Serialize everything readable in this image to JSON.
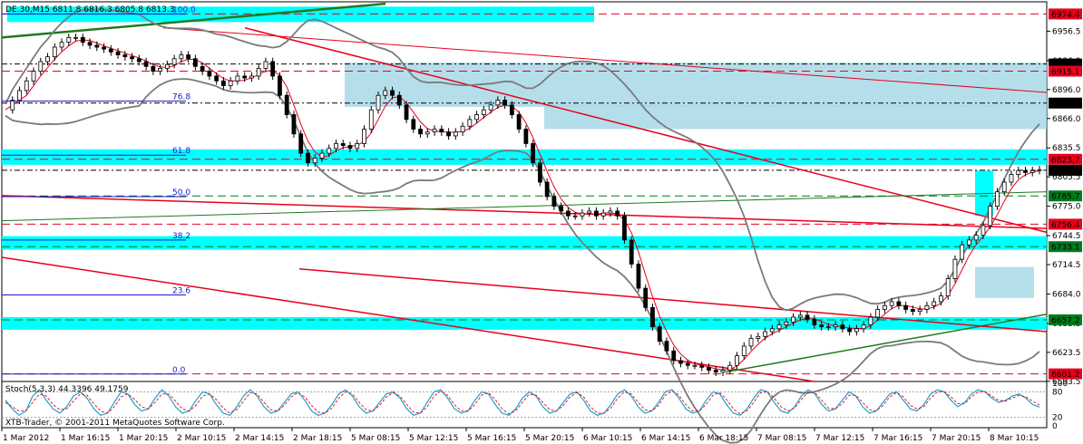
{
  "header": {
    "symbol_line": "DE.30,M15  6811.8 6816.3 6805.8 6813.3"
  },
  "footer": {
    "copyright": "XTB-Trader, © 2001-2011 MetaQuotes Software Corp."
  },
  "chart_data": [
    {
      "type": "candlestick",
      "title": "DE.30,M15  6811.8 6816.3 6805.8 6813.3",
      "ylim": [
        6593.3,
        6987.0
      ],
      "grid": false,
      "y_ticks": [
        "6956.5",
        "6926.0",
        "6896.0",
        "6866.0",
        "6835.5",
        "6805.5",
        "6775.0",
        "6744.5",
        "6714.5",
        "6684.0",
        "6653.5",
        "6623.5",
        "6593.5"
      ],
      "x_ticks": [
        "1 Mar 2012",
        "1 Mar 16:15",
        "1 Mar 20:15",
        "2 Mar 10:15",
        "2 Mar 14:15",
        "2 Mar 18:15",
        "5 Mar 08:15",
        "5 Mar 12:15",
        "5 Mar 16:15",
        "5 Mar 20:15",
        "6 Mar 10:15",
        "6 Mar 14:15",
        "6 Mar 18:15",
        "7 Mar 08:15",
        "7 Mar 12:15",
        "7 Mar 16:15",
        "7 Mar 20:15",
        "8 Mar 10:15"
      ],
      "price_levels": [
        {
          "value": 6974.4,
          "text": "6974.4",
          "color": "#e8001c"
        },
        {
          "value": 6922.5,
          "text": "6922.5",
          "color": "#000000"
        },
        {
          "value": 6915.1,
          "text": "6915.1",
          "color": "#e8001c"
        },
        {
          "value": 6882.0,
          "text": "6882.0",
          "color": "#000000"
        },
        {
          "value": 6823.7,
          "text": "6823.7",
          "color": "#e8001c"
        },
        {
          "value": 6812.3,
          "text": "6812.3",
          "color": "#000000"
        },
        {
          "value": 6785.7,
          "text": "6785.7",
          "color": "#007a1e"
        },
        {
          "value": 6756.4,
          "text": "6756.4",
          "color": "#e8001c"
        },
        {
          "value": 6733.1,
          "text": "6733.1",
          "color": "#007a1e"
        },
        {
          "value": 6657.2,
          "text": "6657.2",
          "color": "#007a1e"
        },
        {
          "value": 6601.2,
          "text": "6601.2",
          "color": "#e8001c"
        }
      ],
      "fibonacci": [
        {
          "level": "100.0",
          "value": 6974.4
        },
        {
          "level": "76.8",
          "value": 6884.0
        },
        {
          "level": "61.8",
          "value": 6828.0
        },
        {
          "level": "50.0",
          "value": 6785.0
        },
        {
          "level": "38.2",
          "value": 6740.0
        },
        {
          "level": "23.6",
          "value": 6683.0
        },
        {
          "level": "0.0",
          "value": 6601.0
        }
      ],
      "close_series": [
        6875,
        6885,
        6895,
        6905,
        6915,
        6925,
        6930,
        6940,
        6945,
        6950,
        6950,
        6945,
        6942,
        6940,
        6938,
        6935,
        6932,
        6930,
        6928,
        6925,
        6920,
        6915,
        6918,
        6922,
        6928,
        6932,
        6928,
        6920,
        6915,
        6910,
        6905,
        6900,
        6905,
        6910,
        6908,
        6910,
        6918,
        6925,
        6910,
        6890,
        6870,
        6850,
        6830,
        6820,
        6825,
        6830,
        6835,
        6840,
        6838,
        6835,
        6840,
        6855,
        6875,
        6890,
        6895,
        6890,
        6880,
        6865,
        6855,
        6850,
        6852,
        6855,
        6852,
        6848,
        6852,
        6858,
        6865,
        6870,
        6875,
        6880,
        6885,
        6880,
        6870,
        6855,
        6840,
        6820,
        6800,
        6785,
        6775,
        6770,
        6765,
        6765,
        6768,
        6770,
        6765,
        6768,
        6770,
        6765,
        6740,
        6715,
        6690,
        6670,
        6650,
        6635,
        6625,
        6615,
        6612,
        6610,
        6610,
        6608,
        6605,
        6603,
        6605,
        6610,
        6620,
        6630,
        6638,
        6640,
        6645,
        6648,
        6652,
        6655,
        6660,
        6662,
        6658,
        6652,
        6650,
        6650,
        6652,
        6648,
        6645,
        6648,
        6652,
        6660,
        6668,
        6672,
        6676,
        6672,
        6668,
        6666,
        6668,
        6672,
        6676,
        6682,
        6700,
        6720,
        6735,
        6740,
        6745,
        6755,
        6775,
        6790,
        6800,
        6808,
        6812,
        6810,
        6812,
        6813
      ],
      "stochastic": {
        "label": "Stoch(5,3,3) 44.3396 49.1759",
        "ylim": [
          0,
          100
        ],
        "y_ticks": [
          "100",
          "80",
          "20",
          "0"
        ],
        "k_values": [
          60,
          40,
          25,
          35,
          70,
          85,
          60,
          40,
          30,
          45,
          70,
          80,
          65,
          40,
          25,
          30,
          55,
          80,
          75,
          50,
          35,
          40,
          65,
          85,
          70,
          45,
          30,
          35,
          60,
          80,
          75,
          50,
          30,
          25,
          45,
          70,
          85,
          70,
          45,
          30,
          35,
          55,
          75,
          80,
          60,
          35,
          25,
          30,
          50,
          75,
          85,
          70,
          45,
          30,
          35,
          55,
          75,
          80,
          65,
          40,
          25,
          30,
          55,
          80,
          85,
          65,
          40,
          30,
          35,
          60,
          80,
          75,
          50,
          30,
          25,
          40,
          65,
          80,
          70,
          45,
          30,
          35,
          55,
          75,
          80,
          60,
          35,
          25,
          30,
          50,
          75,
          85,
          70,
          45,
          30,
          35,
          55,
          80,
          85,
          65,
          40,
          30,
          35,
          60,
          80,
          75,
          50,
          30,
          25,
          40,
          65,
          85,
          80,
          55,
          35,
          30,
          45,
          70,
          85,
          75,
          50,
          35,
          40,
          60,
          80,
          70,
          45,
          30,
          35,
          55,
          75,
          80,
          60,
          40,
          35,
          50,
          75,
          85,
          80,
          60,
          45,
          55,
          75,
          85,
          80,
          65,
          55,
          60,
          70,
          75,
          65,
          50,
          44
        ],
        "d_values": [
          55,
          45,
          35,
          35,
          55,
          75,
          70,
          50,
          38,
          40,
          58,
          75,
          72,
          52,
          35,
          30,
          45,
          68,
          75,
          62,
          45,
          40,
          55,
          75,
          75,
          58,
          40,
          35,
          48,
          70,
          75,
          62,
          42,
          30,
          38,
          58,
          78,
          75,
          55,
          38,
          35,
          48,
          68,
          78,
          68,
          48,
          32,
          30,
          42,
          65,
          80,
          75,
          55,
          38,
          35,
          48,
          68,
          78,
          70,
          50,
          32,
          30,
          45,
          70,
          82,
          72,
          50,
          35,
          35,
          50,
          72,
          78,
          62,
          40,
          28,
          35,
          55,
          75,
          72,
          55,
          38,
          35,
          48,
          68,
          78,
          68,
          45,
          30,
          30,
          42,
          65,
          80,
          75,
          55,
          38,
          35,
          48,
          72,
          82,
          72,
          50,
          35,
          35,
          50,
          72,
          78,
          62,
          40,
          28,
          35,
          55,
          78,
          80,
          65,
          45,
          35,
          42,
          62,
          80,
          78,
          60,
          42,
          40,
          52,
          72,
          72,
          55,
          38,
          35,
          48,
          68,
          78,
          68,
          48,
          40,
          45,
          65,
          80,
          80,
          68,
          52,
          52,
          68,
          80,
          80,
          70,
          60,
          58,
          65,
          72,
          68,
          58,
          49
        ]
      }
    }
  ]
}
